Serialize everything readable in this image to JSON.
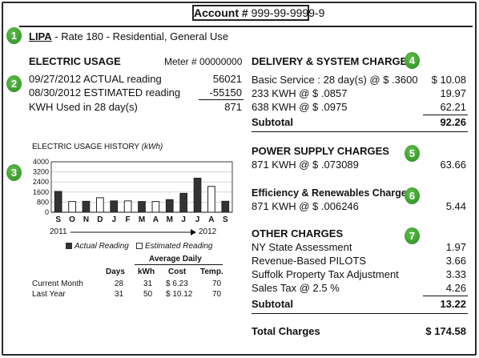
{
  "account": {
    "label": "Account #",
    "number": "999-99-9999-9"
  },
  "badges": [
    "1",
    "2",
    "3",
    "4",
    "5",
    "6",
    "7"
  ],
  "rate": {
    "company": "LIPA",
    "dash": "-",
    "description": "Rate 180 - Residential, General Use"
  },
  "electric_usage": {
    "title": "ELECTRIC USAGE",
    "meter": "Meter # 00000000",
    "rows": [
      {
        "label": "09/27/2012 ACTUAL reading",
        "value": "56021"
      },
      {
        "label": "08/30/2012 ESTIMATED reading",
        "value": "-55150"
      },
      {
        "label": "KWH Used in 28 day(s)",
        "value": "871"
      }
    ]
  },
  "history": {
    "title": "ELECTRIC USAGE HISTORY",
    "unit": "(kWh)",
    "legend_actual": "Actual Reading",
    "legend_estimated": "Estimated Reading",
    "year_start": "2011",
    "year_end": "2012"
  },
  "chart_data": {
    "type": "bar",
    "title": "ELECTRIC USAGE HISTORY (kWh)",
    "categories": [
      "S",
      "O",
      "N",
      "D",
      "J",
      "F",
      "M",
      "A",
      "M",
      "J",
      "J",
      "A",
      "S"
    ],
    "series": [
      {
        "name": "Actual Reading",
        "values": [
          1650,
          null,
          870,
          null,
          900,
          null,
          850,
          null,
          1000,
          1500,
          2700,
          null,
          870
        ]
      },
      {
        "name": "Estimated Reading",
        "values": [
          null,
          850,
          null,
          1150,
          null,
          900,
          null,
          850,
          null,
          null,
          null,
          2050,
          null
        ]
      }
    ],
    "yticks": [
      "4000",
      "3200",
      "2400",
      "1600",
      "800",
      "0"
    ],
    "ylim": [
      0,
      4000
    ],
    "grid": true
  },
  "comparison": {
    "average_daily": "Average Daily",
    "headers": [
      "Days",
      "kWh",
      "Cost",
      "Temp."
    ],
    "rows": [
      {
        "label": "Current Month",
        "days": "28",
        "kwh": "31",
        "cost": "$ 6.23",
        "temp": "70"
      },
      {
        "label": "Last Year",
        "days": "31",
        "kwh": "50",
        "cost": "$ 10.12",
        "temp": "70"
      }
    ]
  },
  "delivery": {
    "title": "DELIVERY & SYSTEM CHARGES",
    "rows": [
      {
        "label": "Basic Service : 28 day(s) @ $ .3600",
        "amount": "$ 10.08"
      },
      {
        "label": "233 KWH @ $ .0857",
        "amount": "19.97"
      },
      {
        "label": "638 KWH @ $ .0975",
        "amount": "62.21"
      }
    ],
    "subtotal_label": "Subtotal",
    "subtotal": "92.26"
  },
  "power_supply": {
    "title": "POWER SUPPLY CHARGES",
    "row": {
      "label": "871 KWH @ $ .073089",
      "amount": "63.66"
    }
  },
  "efficiency": {
    "title": "Efficiency & Renewables Charge",
    "row": {
      "label": "871 KWH @ $ .006246",
      "amount": "5.44"
    }
  },
  "other": {
    "title": "OTHER CHARGES",
    "rows": [
      {
        "label": "NY State Assessment",
        "amount": "1.97"
      },
      {
        "label": "Revenue-Based PILOTS",
        "amount": "3.66"
      },
      {
        "label": "Suffolk Property Tax Adjustment",
        "amount": "3.33"
      },
      {
        "label": "Sales Tax @ 2.5 %",
        "amount": "4.26"
      }
    ],
    "subtotal_label": "Subtotal",
    "subtotal": "13.22"
  },
  "total": {
    "label": "Total Charges",
    "amount": "$ 174.58"
  }
}
